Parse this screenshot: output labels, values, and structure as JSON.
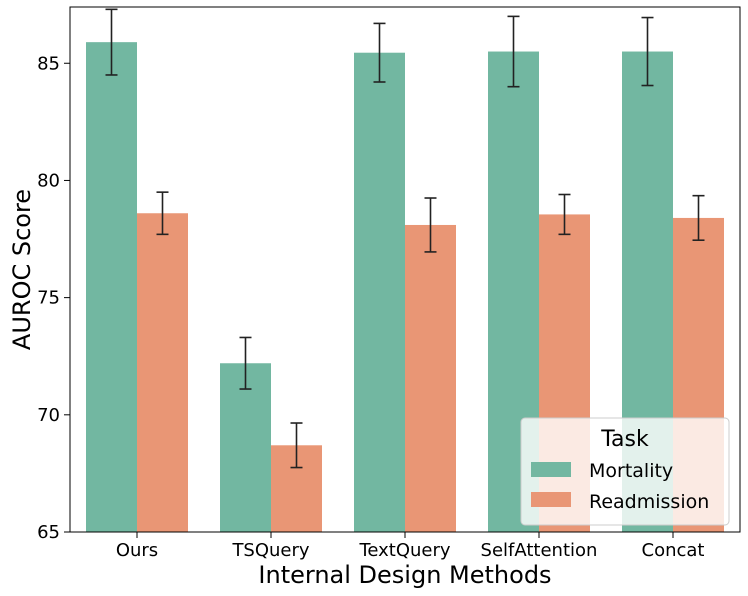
{
  "chart_data": {
    "type": "bar",
    "title": "",
    "xlabel": "Internal Design Methods",
    "ylabel": "AUROC Score",
    "ylim": [
      65,
      87.4
    ],
    "yticks": [
      65,
      70,
      75,
      80,
      85
    ],
    "grid": false,
    "categories": [
      "Ours",
      "TSQuery",
      "TextQuery",
      "SelfAttention",
      "Concat"
    ],
    "series": [
      {
        "name": "Mortality",
        "color": "#72b7a1",
        "values": [
          85.9,
          72.2,
          85.45,
          85.5,
          85.5
        ],
        "errors": [
          1.4,
          1.1,
          1.25,
          1.5,
          1.45
        ]
      },
      {
        "name": "Readmission",
        "color": "#e99675",
        "values": [
          78.6,
          68.7,
          78.1,
          78.55,
          78.4
        ],
        "errors": [
          0.9,
          0.95,
          1.15,
          0.85,
          0.95
        ]
      }
    ],
    "legend": {
      "title": "Task",
      "position": "bottom-right"
    }
  }
}
